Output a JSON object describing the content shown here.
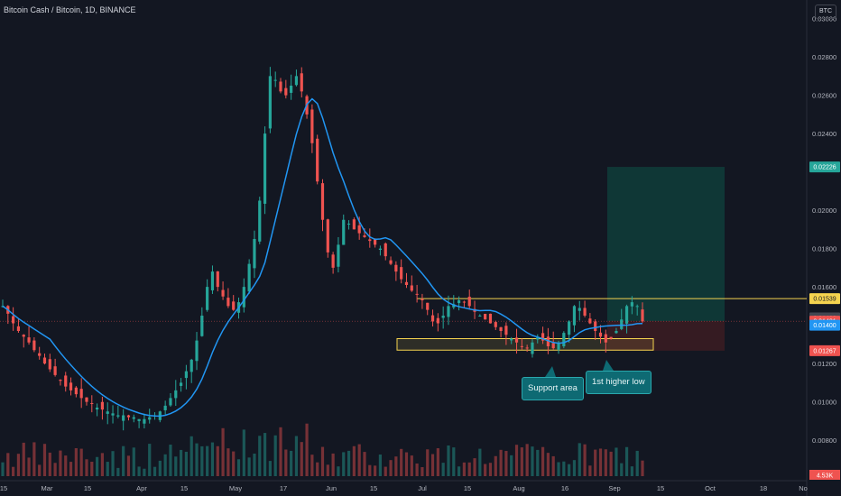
{
  "header": {
    "title": "Bitcoin Cash / Bitcoin, 1D, BINANCE",
    "currency_badge": "BTC"
  },
  "annotations": {
    "support_area": "Support area",
    "higher_low": "1st higher low"
  },
  "colors": {
    "background": "#131722",
    "bull": "#26a69a",
    "bear": "#ef5350",
    "ma": "#2196f3",
    "support": "#f5d34f",
    "profit_zone": "#0f3d3a",
    "loss_zone": "#3a1c22"
  },
  "chart_data": {
    "type": "candlestick",
    "title": "Bitcoin Cash / Bitcoin, 1D, BINANCE",
    "y_axis": {
      "ylim": [
        0.0065,
        0.0305
      ],
      "ticks": [
        "0.03000",
        "0.02800",
        "0.02600",
        "0.02400",
        "0.02000",
        "0.01800",
        "0.01600",
        "0.01200",
        "0.01000",
        "0.00800"
      ]
    },
    "x_axis": {
      "ticks": [
        "15",
        "Mar",
        "15",
        "Apr",
        "15",
        "May",
        "17",
        "Jun",
        "15",
        "Jul",
        "15",
        "Aug",
        "16",
        "Sep",
        "15",
        "Oct",
        "18",
        "No"
      ]
    },
    "price_tags": [
      {
        "value": "0.02226",
        "color": "#26a69a"
      },
      {
        "value": "0.01539",
        "color": "#f5d34f"
      },
      {
        "value": "0.01438",
        "color": "#434651"
      },
      {
        "value": "0.01421",
        "color": "#ef5350"
      },
      {
        "value": "0.01400",
        "color": "#2196f3"
      },
      {
        "value": "0.01267",
        "color": "#ef5350"
      }
    ],
    "volume_tag": "4.53K",
    "key_levels": {
      "resistance": 0.01539,
      "support_low": 0.0127,
      "support_high": 0.0133,
      "current": 0.01421
    },
    "position": {
      "entry": 0.01421,
      "target": 0.02226,
      "stop": 0.01267
    },
    "price_path": [
      0.015,
      0.0146,
      0.0141,
      0.0137,
      0.0134,
      0.0131,
      0.0127,
      0.0124,
      0.012,
      0.0117,
      0.0114,
      0.0111,
      0.0108,
      0.0106,
      0.0104,
      0.0102,
      0.01,
      0.0099,
      0.0097,
      0.0096,
      0.0095,
      0.0094,
      0.0093,
      0.0093,
      0.0092,
      0.0092,
      0.0091,
      0.0091,
      0.0092,
      0.0093,
      0.0095,
      0.0098,
      0.0102,
      0.0106,
      0.011,
      0.0116,
      0.0122,
      0.0132,
      0.0145,
      0.016,
      0.0168,
      0.016,
      0.0155,
      0.015,
      0.0148,
      0.0152,
      0.016,
      0.0172,
      0.0185,
      0.0205,
      0.024,
      0.027,
      0.0268,
      0.0262,
      0.026,
      0.0265,
      0.027,
      0.0262,
      0.025,
      0.0235,
      0.0215,
      0.0195,
      0.0178,
      0.017,
      0.0182,
      0.0195,
      0.0193,
      0.019,
      0.0188,
      0.0186,
      0.0184,
      0.0182,
      0.018,
      0.0176,
      0.0172,
      0.0168,
      0.0164,
      0.0161,
      0.0158,
      0.0156,
      0.0153,
      0.0148,
      0.0142,
      0.0141,
      0.0145,
      0.015,
      0.0151,
      0.0153,
      0.0152,
      0.015,
      0.0147,
      0.0145,
      0.0143,
      0.0141,
      0.0139,
      0.0137,
      0.0135,
      0.0133,
      0.0131,
      0.0129,
      0.0128,
      0.0131,
      0.0134,
      0.0132,
      0.0129,
      0.0128,
      0.0131,
      0.0136,
      0.0142,
      0.015,
      0.0149,
      0.0145,
      0.0141,
      0.0137,
      0.0134,
      0.0131,
      0.0133,
      0.0137,
      0.0143,
      0.015,
      0.0152,
      0.015,
      0.0142
    ]
  }
}
